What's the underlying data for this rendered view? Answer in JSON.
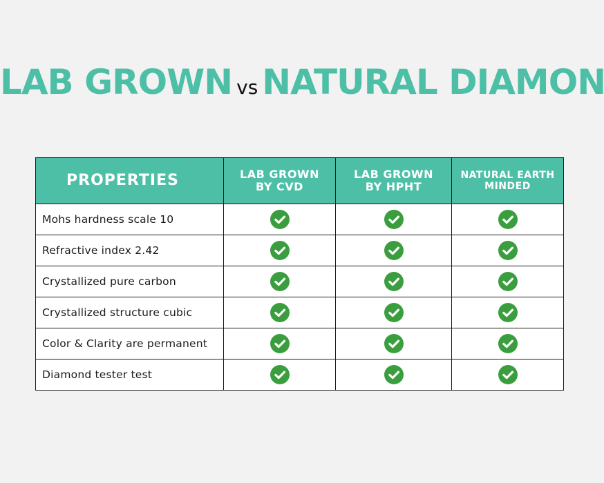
{
  "title": {
    "part1": "LAB GROWN",
    "vs": "vs",
    "part2": "NATURAL DIAMOND"
  },
  "table": {
    "headers": {
      "properties": "PROPERTIES",
      "cvd_line1": "LAB GROWN",
      "cvd_line2": "BY CVD",
      "hpht_line1": "LAB GROWN",
      "hpht_line2": "BY HPHT",
      "natural_line1": "NATURAL EARTH",
      "natural_line2": "MINDED"
    },
    "rows": [
      {
        "property": "Mohs hardness scale 10",
        "cvd": true,
        "hpht": true,
        "natural": true
      },
      {
        "property": "Refractive index 2.42",
        "cvd": true,
        "hpht": true,
        "natural": true
      },
      {
        "property": "Crystallized pure carbon",
        "cvd": true,
        "hpht": true,
        "natural": true
      },
      {
        "property": "Crystallized structure cubic",
        "cvd": true,
        "hpht": true,
        "natural": true
      },
      {
        "property": "Color & Clarity are permanent",
        "cvd": true,
        "hpht": true,
        "natural": true
      },
      {
        "property": "Diamond tester test",
        "cvd": true,
        "hpht": true,
        "natural": true
      }
    ]
  },
  "icons": {
    "check": "check-circle-icon"
  },
  "colors": {
    "accent": "#4dbfa6",
    "check_green": "#3a9e3f",
    "background": "#f2f2f2",
    "border": "#1a1a1a"
  }
}
